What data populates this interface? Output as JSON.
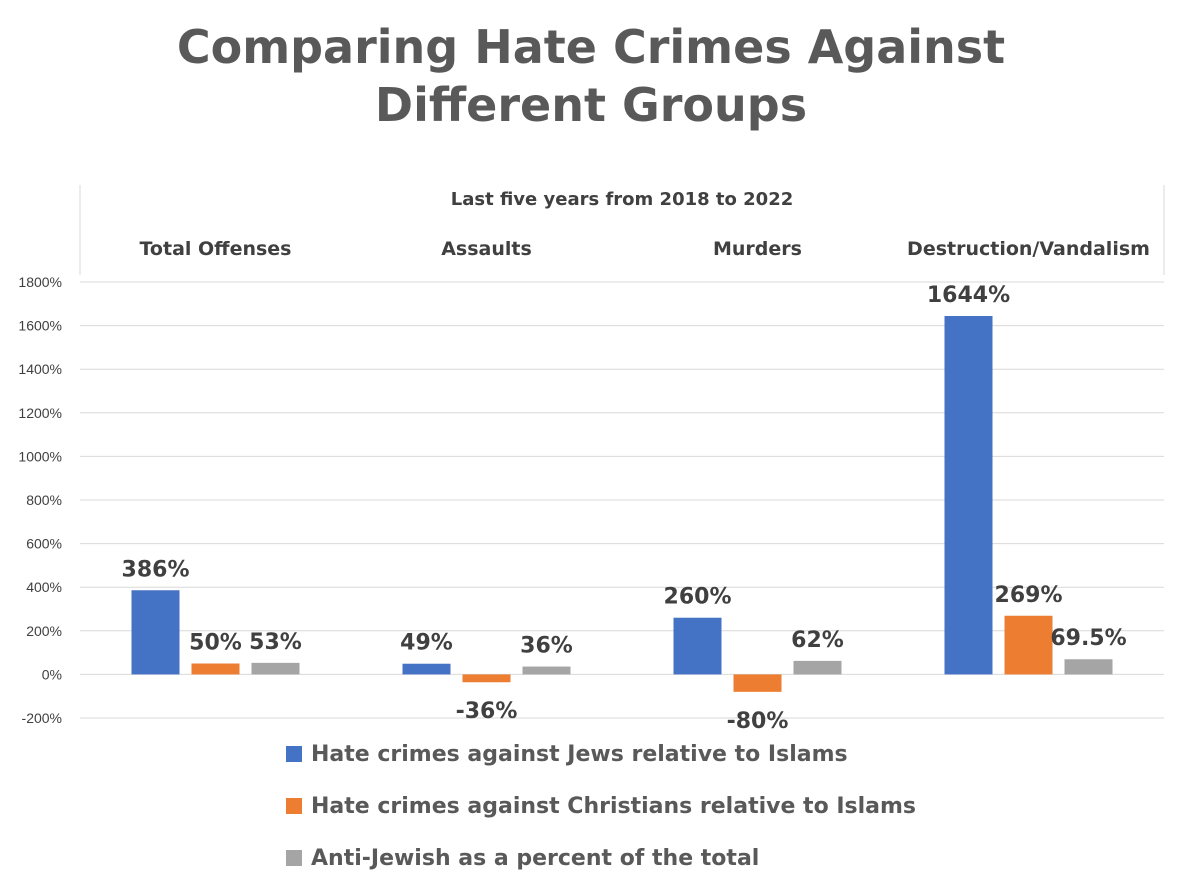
{
  "chart_data": {
    "type": "bar",
    "title": [
      "Comparing Hate Crimes Against",
      "Different Groups"
    ],
    "subtitle": "Last five years from 2018 to 2022",
    "categories": [
      "Total Offenses",
      "Assaults",
      "Murders",
      "Destruction/Vandalism"
    ],
    "series": [
      {
        "name": "Hate crimes against Jews relative to Islams",
        "color": "#4472C4",
        "values": [
          386,
          49,
          260,
          1644
        ],
        "labels": [
          "386%",
          "49%",
          "260%",
          "1644%"
        ]
      },
      {
        "name": "Hate crimes against Christians relative to Islams",
        "color": "#ED7D31",
        "values": [
          50,
          -36,
          -80,
          269
        ],
        "labels": [
          "50%",
          "-36%",
          "-80%",
          "269%"
        ]
      },
      {
        "name": "Anti-Jewish as a percent of the total",
        "color": "#A5A5A5",
        "values": [
          53,
          36,
          62,
          69.5
        ],
        "labels": [
          "53%",
          "36%",
          "62%",
          "69.5%"
        ]
      }
    ],
    "ylim": [
      -200,
      1800
    ],
    "yticks": [
      -200,
      0,
      200,
      400,
      600,
      800,
      1000,
      1200,
      1400,
      1600,
      1800
    ],
    "ytick_labels": [
      "-200%",
      "0%",
      "200%",
      "400%",
      "600%",
      "800%",
      "1000%",
      "1200%",
      "1400%",
      "1600%",
      "1800%"
    ],
    "xlabel": "",
    "ylabel": "",
    "grid": true,
    "legend_position": "bottom",
    "category_axis_position": "top"
  }
}
